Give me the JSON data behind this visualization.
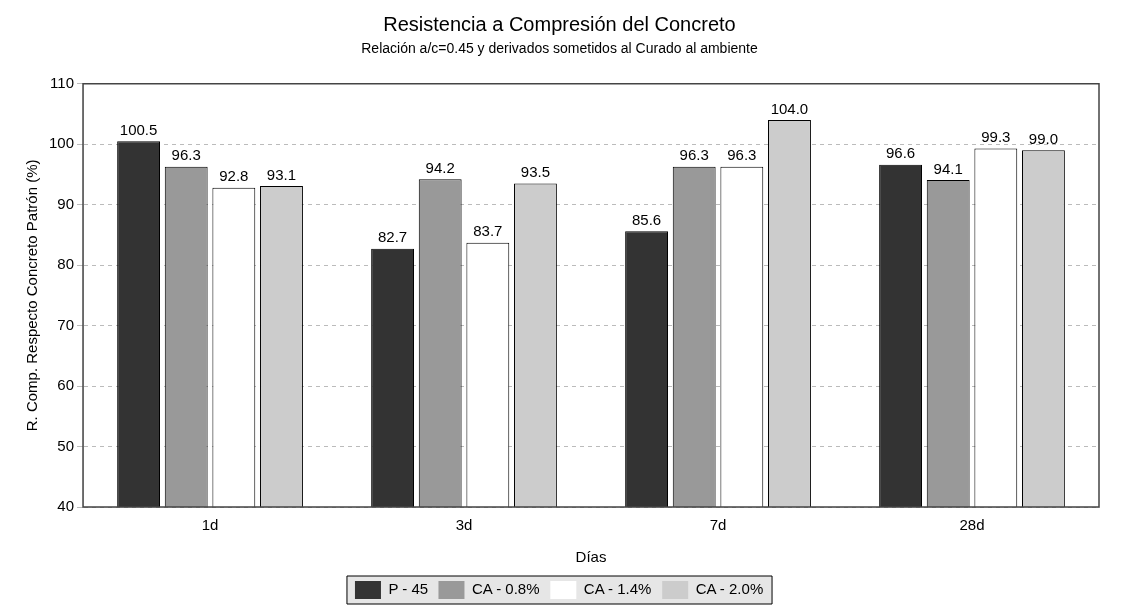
{
  "chart_data": {
    "type": "bar",
    "title": "Resistencia a Compresión del Concreto",
    "subtitle": "Relación a/c=0.45 y derivados sometidos al Curado al ambiente",
    "xlabel": "Días",
    "ylabel": "R. Comp. Respecto Concreto Patrón (%)",
    "categories": [
      "1d",
      "3d",
      "7d",
      "28d"
    ],
    "series": [
      {
        "name": "P - 45",
        "color": "#333333",
        "values": [
          100.5,
          82.7,
          85.6,
          96.6
        ],
        "value_labels": [
          "100.5",
          "82.7",
          "85.6",
          "96.6"
        ]
      },
      {
        "name": "CA - 0.8%",
        "color": "#999999",
        "values": [
          96.3,
          94.2,
          96.3,
          94.1
        ],
        "value_labels": [
          "96.3",
          "94.2",
          "96.3",
          "94.1"
        ]
      },
      {
        "name": "CA - 1.4%",
        "color": "#ffffff",
        "values": [
          92.8,
          83.7,
          96.3,
          99.3
        ],
        "value_labels": [
          "92.8",
          "83.7",
          "96.3",
          "99.3"
        ]
      },
      {
        "name": "CA - 2.0%",
        "color": "#cccccc",
        "values": [
          93.1,
          93.5,
          104.0,
          99.0
        ],
        "value_labels": [
          "93.1",
          "93.5",
          "104.0",
          "99.0"
        ]
      }
    ],
    "ylim": [
      40,
      110
    ],
    "yticks": [
      40,
      50,
      60,
      70,
      80,
      90,
      100,
      110
    ],
    "grid": "y",
    "legend": "bottom"
  }
}
